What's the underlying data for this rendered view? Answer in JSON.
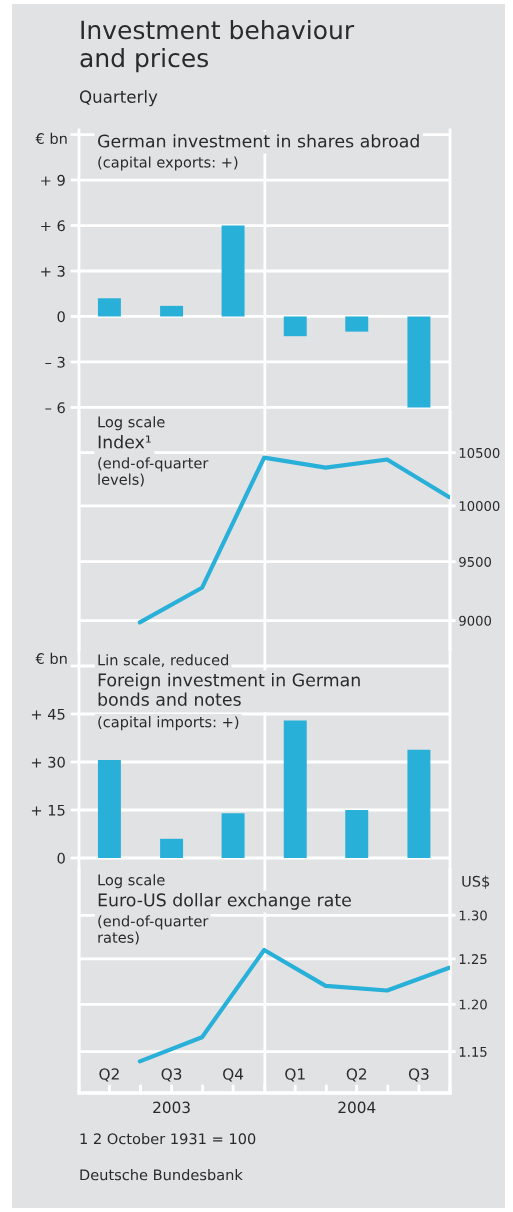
{
  "chart_data": [
    {
      "type": "bar",
      "title": "German investment in shares abroad",
      "subtitle": "(capital exports: +)",
      "ylabel": "€ bn",
      "annotations": [
        "Investment behaviour\nand prices",
        "Quarterly"
      ],
      "x": [
        "2003-05-16",
        "2003-08-16",
        "2003-11-15",
        "2004-02-15",
        "2004-05-16",
        "2004-08-16"
      ],
      "xlim": [
        "2003-04-01",
        "2004-10-01"
      ],
      "ylim": [
        -6.3,
        12.3
      ],
      "yticks": [
        {
          "value": -6,
          "label": "– 6"
        },
        {
          "value": -3,
          "label": "– 3"
        },
        0,
        {
          "value": 3,
          "label": "+ 3"
        },
        {
          "value": 6,
          "label": "+ 6"
        },
        {
          "value": 9,
          "label": "+ 9"
        },
        {
          "value": 12,
          "label": null
        }
      ],
      "series": [
        {
          "color": "#29b0d9",
          "values": [
            1.2,
            0.7,
            6.0,
            -1.3,
            -1.0,
            -6.0
          ]
        }
      ],
      "ref_lines": [
        {
          "axis": "x",
          "value": "2004-01-01",
          "color": "#ffffff"
        }
      ],
      "grid": "y",
      "tick_labels": "y"
    },
    {
      "type": "line",
      "annotations": [
        "Log scale"
      ],
      "title": "Index¹",
      "subtitle": "(end-of-quarter\nlevels)",
      "x": [
        "2003-06-30",
        "2003-09-30",
        "2003-12-31",
        "2004-03-31",
        "2004-06-30",
        "2004-09-30"
      ],
      "xlim": [
        "2003-04-01",
        "2004-10-01"
      ],
      "log": "y2",
      "y2lim": [
        8760,
        10900
      ],
      "y2ticks": [
        9000,
        9500,
        10000,
        10500
      ],
      "series": [
        {
          "color": "#29b0d9",
          "values": [
            8985,
            9275,
            10453,
            10357,
            10435,
            10080
          ],
          "axis": "y2"
        }
      ],
      "ref_lines": [
        {
          "axis": "x",
          "value": "2004-01-01",
          "color": "#ffffff"
        }
      ],
      "grid": "y",
      "tick_labels": "y"
    },
    {
      "type": "bar",
      "annotations": [
        "Lin scale, reduced"
      ],
      "title": "Foreign investment in German\nbonds and notes",
      "subtitle": "(capital imports: +)",
      "ylabel": "€ bn",
      "x": [
        "2003-05-16",
        "2003-08-16",
        "2003-11-15",
        "2004-02-15",
        "2004-05-16",
        "2004-08-16"
      ],
      "xlim": [
        "2003-04-01",
        "2004-10-01"
      ],
      "ylim": [
        -3.75,
        65
      ],
      "yticks": [
        0,
        {
          "value": 15,
          "label": "+ 15"
        },
        {
          "value": 30,
          "label": "+ 30"
        },
        {
          "value": 45,
          "label": "+ 45"
        },
        {
          "value": 60,
          "label": null
        }
      ],
      "series": [
        {
          "color": "#29b0d9",
          "values": [
            30.6,
            6,
            14,
            43,
            15,
            33.8
          ]
        }
      ],
      "ref_lines": [
        {
          "axis": "x",
          "value": "2004-01-01",
          "color": "#ffffff"
        }
      ],
      "grid": "y",
      "tick_labels": "y"
    },
    {
      "type": "line",
      "title": "Euro-US dollar exchange rate",
      "subtitle": "(end-of-quarter\nrates)",
      "y2label": "US$",
      "annotations": [
        "Log scale",
        "1 2 October 1931 = 100",
        "Deutsche Bundesbank"
      ],
      "x2lim": [
        "2003-04-01",
        "2004-10-01"
      ],
      "x2ticks": [
        {
          "value": "2003-08-16",
          "label": "2003"
        },
        {
          "value": "2004-05-16",
          "label": "2004"
        }
      ],
      "x": [
        "2003-06-30",
        "2003-09-30",
        "2003-12-31",
        "2004-03-31",
        "2004-06-30",
        "2004-09-30"
      ],
      "xlim": [
        "2003-04-01",
        "2004-10-01"
      ],
      "xticks": [
        {
          "value": "2003-04-01",
          "label": null
        },
        {
          "value": "2003-05-16",
          "label": "Q2"
        },
        {
          "value": "2003-07-01",
          "label": null
        },
        {
          "value": "2003-08-16",
          "label": "Q3"
        },
        {
          "value": "2003-10-01",
          "label": null
        },
        {
          "value": "2003-11-15",
          "label": "Q4"
        },
        {
          "value": "2004-01-01",
          "label": null
        },
        {
          "value": "2004-02-15",
          "label": "Q1"
        },
        {
          "value": "2004-04-01",
          "label": null
        },
        {
          "value": "2004-05-16",
          "label": "Q2"
        },
        {
          "value": "2004-07-01",
          "label": null
        },
        {
          "value": "2004-08-16",
          "label": "Q3"
        },
        {
          "value": "2004-10-01",
          "label": null
        }
      ],
      "log": "y2",
      "y2lim": [
        1.108,
        1.354
      ],
      "y2ticks": [
        1.15,
        {
          "value": 1.2,
          "label": "1.20"
        },
        1.25,
        {
          "value": 1.3,
          "label": "1.30"
        }
      ],
      "series": [
        {
          "color": "#29b0d9",
          "values": [
            1.14,
            1.165,
            1.26,
            1.22,
            1.215,
            1.24
          ],
          "axis": "y2"
        }
      ],
      "ref_lines": [
        {
          "axis": "x",
          "value": "2004-01-01",
          "color": "#ffffff"
        }
      ],
      "grid": "y"
    }
  ]
}
